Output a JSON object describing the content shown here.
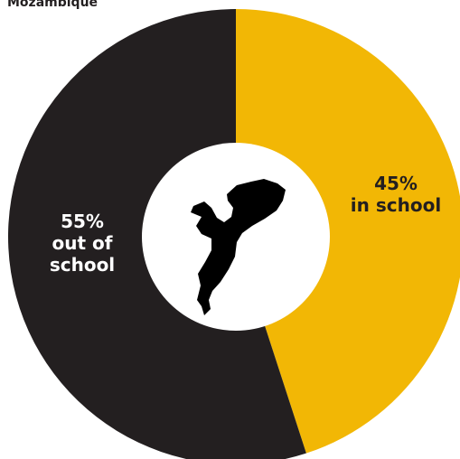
{
  "title": "Mozambique",
  "chart_data": {
    "type": "pie",
    "title": "Mozambique",
    "categories": [
      "in school",
      "out of school"
    ],
    "values": [
      45,
      55
    ],
    "unit": "%",
    "labels": [
      {
        "percent": "45%",
        "lines": [
          "in school"
        ]
      },
      {
        "percent": "55%",
        "lines": [
          "out of",
          "school"
        ]
      }
    ],
    "center_icon": "mozambique-map-silhouette-icon",
    "colors": [
      "#f2b705",
      "#231f20"
    ],
    "label_colors": [
      "#231f20",
      "#ffffff"
    ],
    "background": "#ffffff"
  }
}
